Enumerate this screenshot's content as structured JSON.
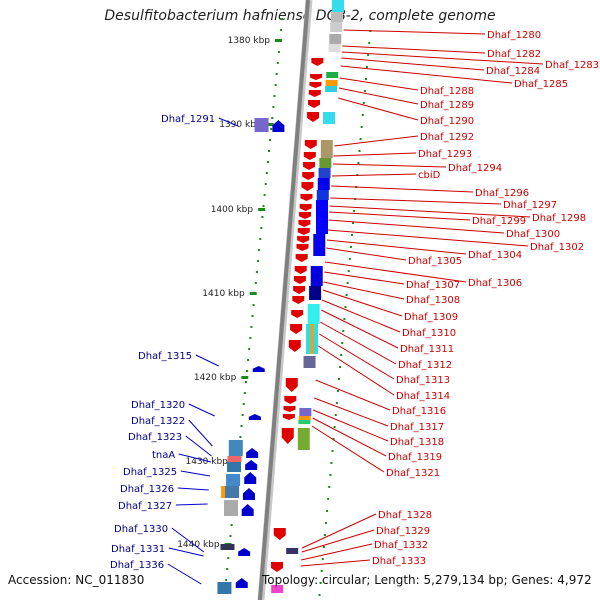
{
  "title": "Desulfitobacterium hafniense DCB-2, complete genome",
  "footer": {
    "accession": "Accession: NC_011830",
    "topology": "Topology: circular; Length: 5,279,134 bp; Genes: 4,972"
  },
  "colors": {
    "forward": "#e00000",
    "reverse": "#0000cc",
    "backbone": "#808080",
    "ruler_ticks": "#1a8a1a",
    "label_right": "#cc0000",
    "label_left": "#00008b"
  },
  "kbp_labels": [
    "1380 kbp",
    "1390 kbp",
    "1400 kbp",
    "1410 kbp",
    "1420 kbp",
    "1430 kbp",
    "1440 kbp"
  ],
  "right_labels": [
    "Dhaf_1280",
    "Dhaf_1282",
    "Dhaf_1283",
    "Dhaf_1284",
    "Dhaf_1285",
    "Dhaf_1288",
    "Dhaf_1289",
    "Dhaf_1290",
    "Dhaf_1292",
    "Dhaf_1293",
    "Dhaf_1294",
    "cbiD",
    "Dhaf_1296",
    "Dhaf_1297",
    "Dhaf_1298",
    "Dhaf_1299",
    "Dhaf_1300",
    "Dhaf_1302",
    "Dhaf_1304",
    "Dhaf_1305",
    "Dhaf_1306",
    "Dhaf_1307",
    "Dhaf_1308",
    "Dhaf_1309",
    "Dhaf_1310",
    "Dhaf_1311",
    "Dhaf_1312",
    "Dhaf_1313",
    "Dhaf_1314",
    "Dhaf_1316",
    "Dhaf_1317",
    "Dhaf_1318",
    "Dhaf_1319",
    "Dhaf_1321",
    "Dhaf_1328",
    "Dhaf_1329",
    "Dhaf_1332",
    "Dhaf_1333"
  ],
  "left_labels": [
    "Dhaf_1291",
    "Dhaf_1315",
    "Dhaf_1320",
    "Dhaf_1322",
    "Dhaf_1323",
    "tnaA",
    "Dhaf_1325",
    "Dhaf_1326",
    "Dhaf_1327",
    "Dhaf_1330",
    "Dhaf_1331",
    "Dhaf_1336"
  ]
}
